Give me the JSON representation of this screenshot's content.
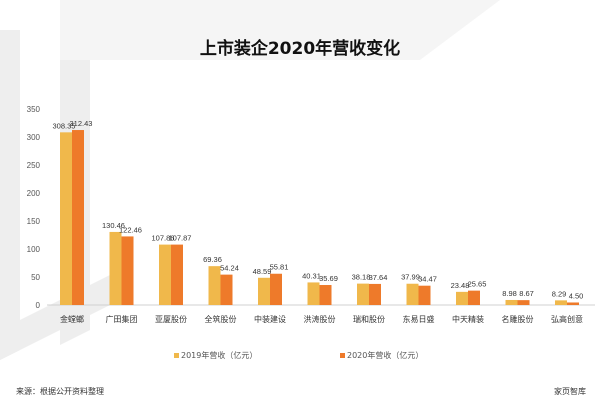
{
  "chart_data": {
    "type": "bar",
    "title": "上市装企2020年营收变化",
    "categories": [
      "金螳螂",
      "广田集团",
      "亚厦股份",
      "全筑股份",
      "中装建设",
      "洪涛股份",
      "瑞和股份",
      "东易日盛",
      "中天精装",
      "名雕股份",
      "弘高创意"
    ],
    "series": [
      {
        "name": "2019年营收（亿元）",
        "color": "#F0B84B",
        "values": [
          308.35,
          130.46,
          107.86,
          69.36,
          48.59,
          40.31,
          38.18,
          37.99,
          23.48,
          8.98,
          8.29
        ]
      },
      {
        "name": "2020年营收（亿元）",
        "color": "#EE7A2A",
        "values": [
          312.43,
          122.46,
          107.87,
          54.24,
          55.81,
          35.69,
          37.64,
          34.47,
          25.65,
          8.67,
          4.5
        ]
      }
    ],
    "xlabel": "",
    "ylabel": "",
    "ylim": [
      0,
      350
    ],
    "yticks": [
      0,
      50,
      100,
      150,
      200,
      250,
      300,
      350
    ],
    "grid": false,
    "legend": "bottom"
  },
  "footer": {
    "source": "来源：根据公开资料整理",
    "brand": "家页智库"
  }
}
